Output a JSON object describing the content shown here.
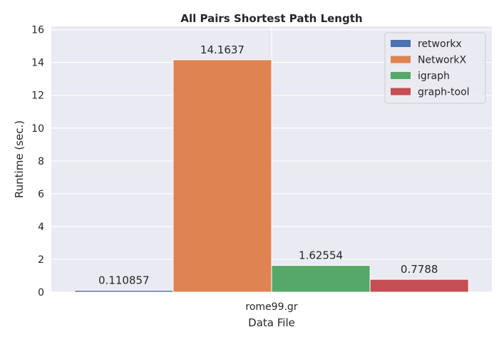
{
  "chart_data": {
    "type": "bar",
    "title": "All Pairs Shortest Path Length",
    "xlabel": "Data File",
    "ylabel": "Runtime (sec.)",
    "categories": [
      "rome99.gr"
    ],
    "series": [
      {
        "name": "retworkx",
        "values": [
          0.110857
        ],
        "label": "0.110857",
        "color": "#4c72b0"
      },
      {
        "name": "NetworkX",
        "values": [
          14.1637
        ],
        "label": "14.1637",
        "color": "#dd8452"
      },
      {
        "name": "igraph",
        "values": [
          1.62554
        ],
        "label": "1.62554",
        "color": "#55a868"
      },
      {
        "name": "graph-tool",
        "values": [
          0.7788
        ],
        "label": "0.7788",
        "color": "#c44e52"
      }
    ],
    "ylim": [
      0,
      16.2
    ],
    "yticks": [
      0,
      2,
      4,
      6,
      8,
      10,
      12,
      14,
      16
    ],
    "grid": true,
    "legend_position": "top-right",
    "background": "#eaeaf2"
  }
}
